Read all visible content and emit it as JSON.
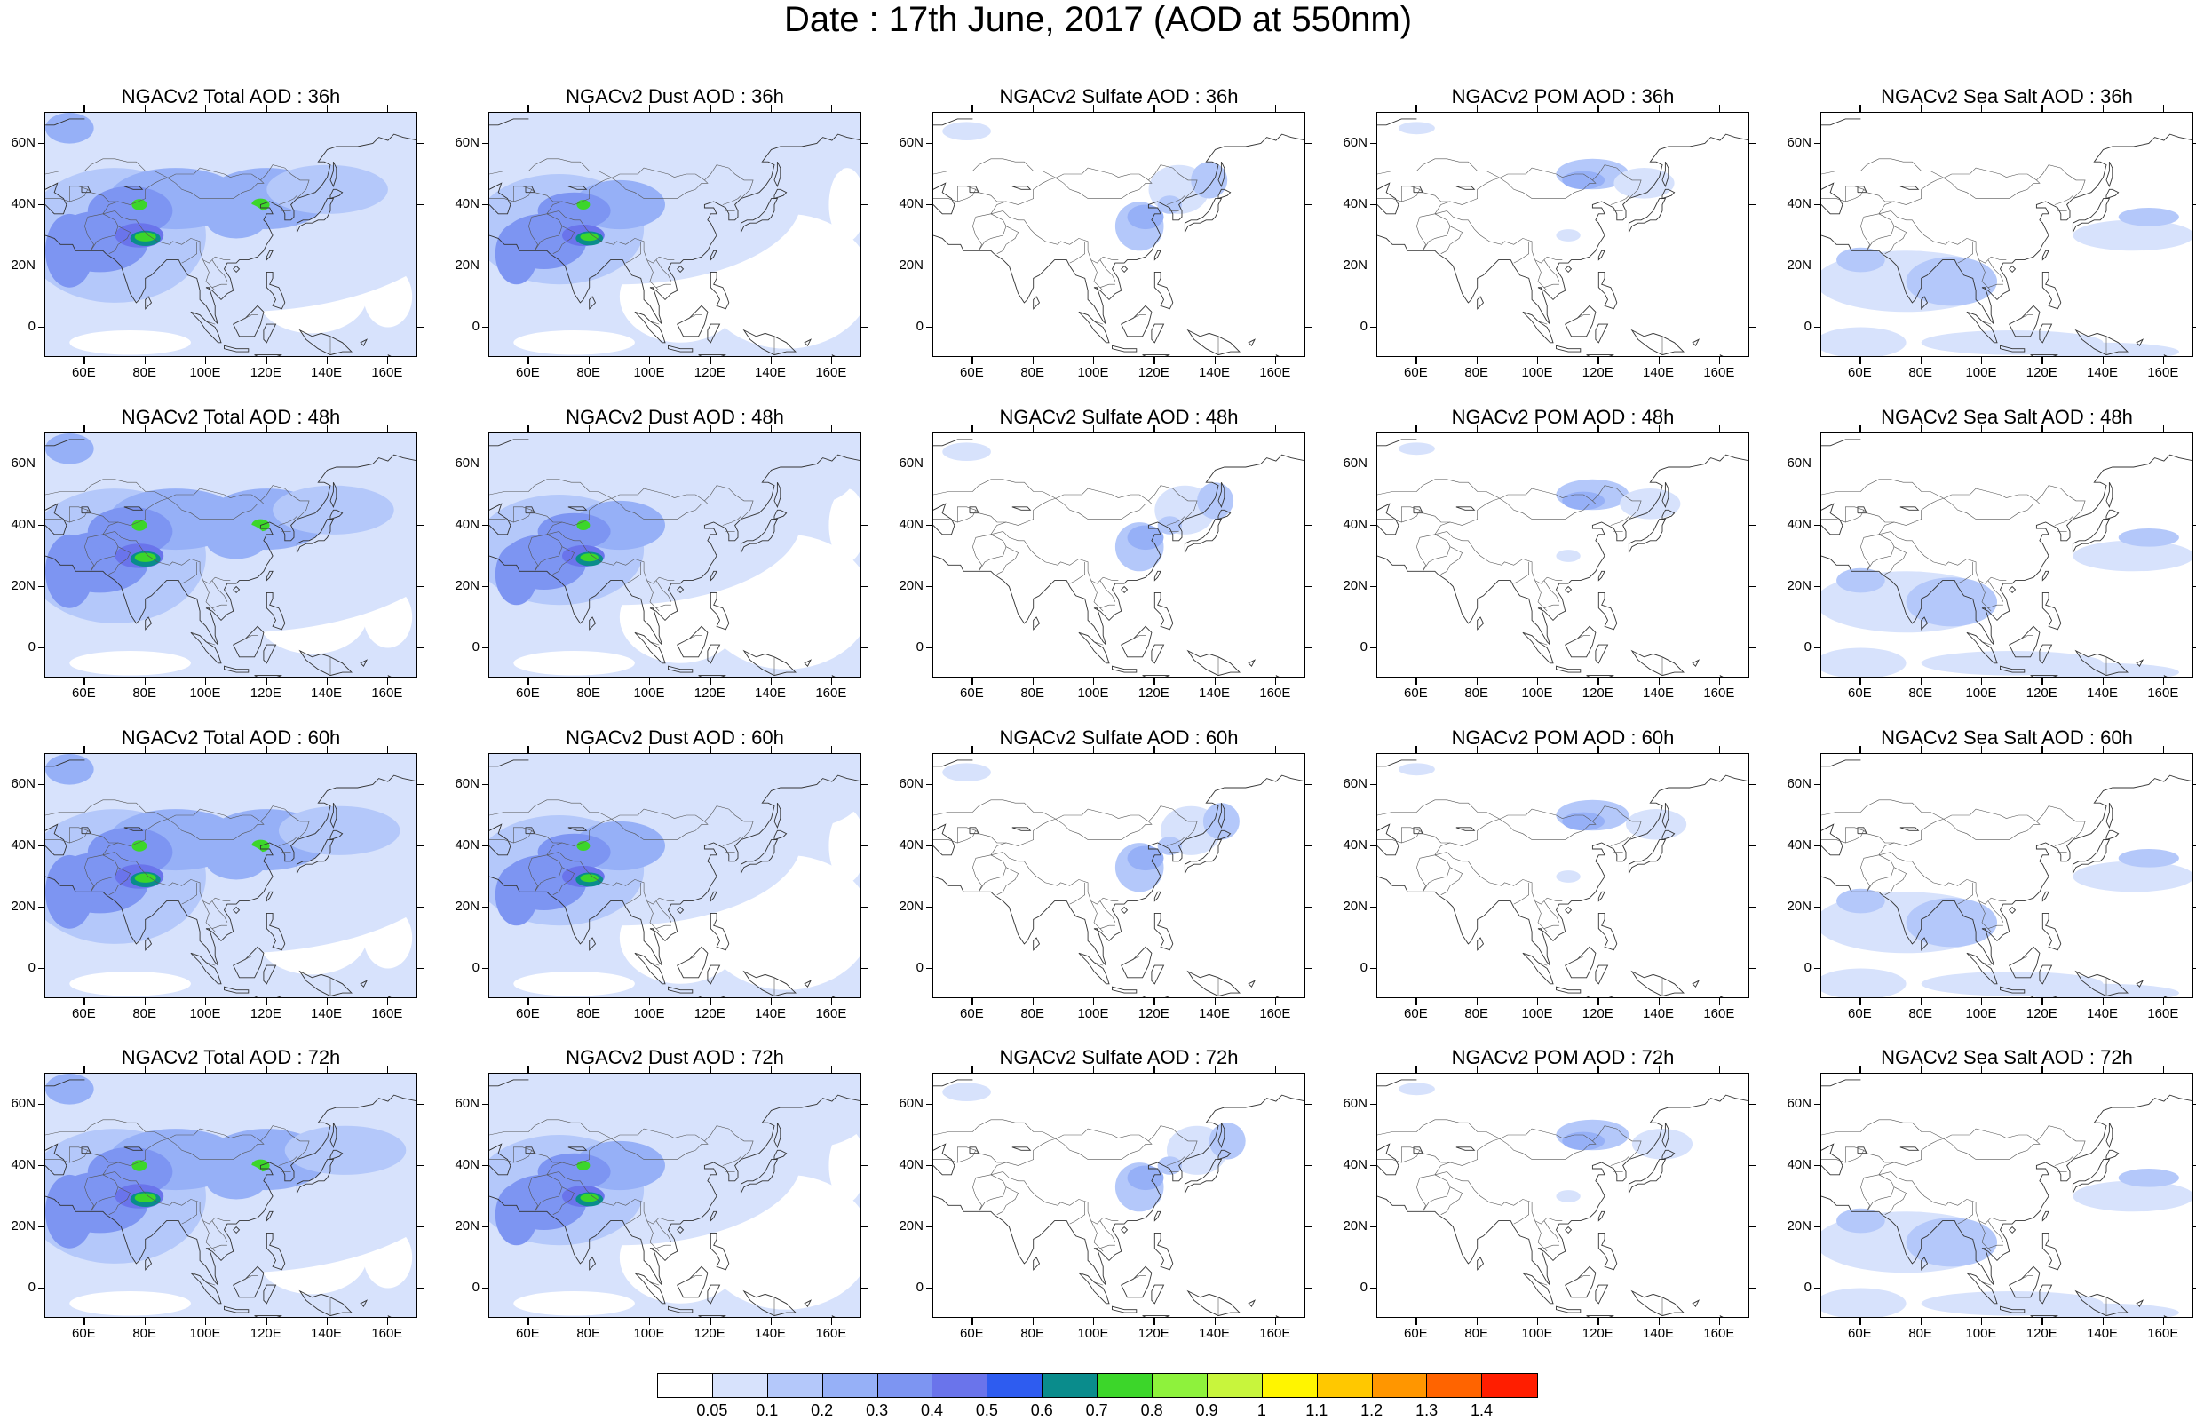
{
  "title": "Date : 17th June, 2017 (AOD at 550nm)",
  "panels": [
    [
      {
        "title": "NGACv2 Total AOD : 36h",
        "kind": "total"
      },
      {
        "title": "NGACv2 Dust AOD : 36h",
        "kind": "dust"
      },
      {
        "title": "NGACv2 Sulfate AOD : 36h",
        "kind": "sulfate"
      },
      {
        "title": "NGACv2 POM AOD : 36h",
        "kind": "pom"
      },
      {
        "title": "NGACv2 Sea Salt AOD : 36h",
        "kind": "seasalt"
      }
    ],
    [
      {
        "title": "NGACv2 Total AOD : 48h",
        "kind": "total"
      },
      {
        "title": "NGACv2 Dust AOD : 48h",
        "kind": "dust"
      },
      {
        "title": "NGACv2 Sulfate AOD : 48h",
        "kind": "sulfate"
      },
      {
        "title": "NGACv2 POM AOD : 48h",
        "kind": "pom"
      },
      {
        "title": "NGACv2 Sea Salt AOD : 48h",
        "kind": "seasalt"
      }
    ],
    [
      {
        "title": "NGACv2 Total AOD : 60h",
        "kind": "total"
      },
      {
        "title": "NGACv2 Dust AOD : 60h",
        "kind": "dust"
      },
      {
        "title": "NGACv2 Sulfate AOD : 60h",
        "kind": "sulfate"
      },
      {
        "title": "NGACv2 POM AOD : 60h",
        "kind": "pom"
      },
      {
        "title": "NGACv2 Sea Salt AOD : 60h",
        "kind": "seasalt"
      }
    ],
    [
      {
        "title": "NGACv2 Total AOD : 72h",
        "kind": "total"
      },
      {
        "title": "NGACv2 Dust AOD : 72h",
        "kind": "dust"
      },
      {
        "title": "NGACv2 Sulfate AOD : 72h",
        "kind": "sulfate"
      },
      {
        "title": "NGACv2 POM AOD : 72h",
        "kind": "pom"
      },
      {
        "title": "NGACv2 Sea Salt  AOD : 72h",
        "kind": "seasalt"
      }
    ]
  ],
  "lat_labels": [
    "60N",
    "40N",
    "20N",
    "0"
  ],
  "lon_labels": [
    "60E",
    "80E",
    "100E",
    "120E",
    "140E",
    "160E"
  ],
  "colorbar": {
    "labels": [
      "0.05",
      "0.1",
      "0.2",
      "0.3",
      "0.4",
      "0.5",
      "0.6",
      "0.7",
      "0.8",
      "0.9",
      "1",
      "1.1",
      "1.2",
      "1.3",
      "1.4"
    ],
    "colors": [
      "#ffffff",
      "#d7e2fc",
      "#b4c8fa",
      "#96b0f7",
      "#7d95f2",
      "#6a74eb",
      "#2e5cf0",
      "#0a8c8c",
      "#3cd62a",
      "#8ef23c",
      "#c8f53c",
      "#fff500",
      "#ffc800",
      "#ff9600",
      "#ff6400",
      "#ff1e00"
    ]
  }
}
